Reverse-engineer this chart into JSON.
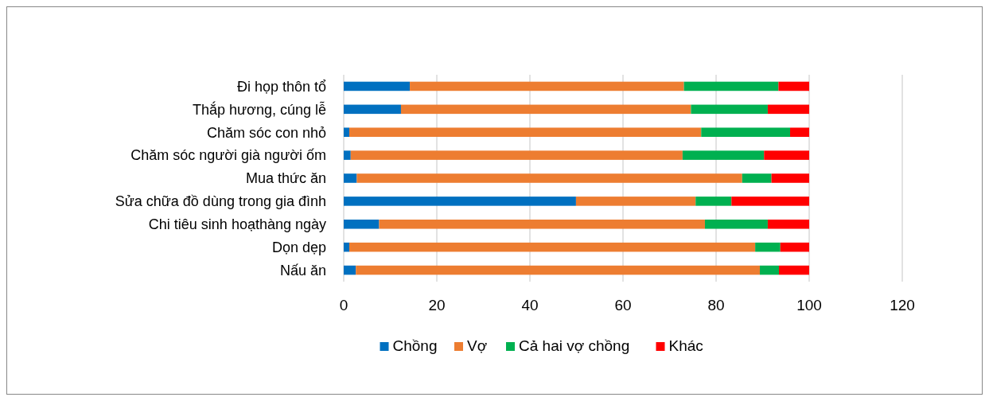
{
  "chart_data": {
    "type": "bar",
    "orientation": "horizontal",
    "stacked": true,
    "categories": [
      "Đi họp thôn tổ",
      "Thắp hương, cúng lễ",
      "Chăm sóc con nhỏ",
      "Chăm sóc người già người ốm",
      "Mua thức ăn",
      "Sửa chữa đồ dùng trong gia đình",
      "Chi tiêu sinh hoạthàng ngày",
      "Dọn dẹp",
      "Nấu ăn"
    ],
    "series": [
      {
        "name": "Chồng",
        "color": "#0070c0",
        "values": [
          14.2,
          12.3,
          1.2,
          1.5,
          2.8,
          49.9,
          7.6,
          1.2,
          2.6
        ]
      },
      {
        "name": "Vợ",
        "color": "#ed7d31",
        "values": [
          58.9,
          62.3,
          75.6,
          71.3,
          82.8,
          25.7,
          70.0,
          87.2,
          86.8
        ]
      },
      {
        "name": "Cả hai vợ chồng",
        "color": "#00b050",
        "values": [
          20.3,
          16.5,
          19.1,
          17.5,
          6.3,
          7.7,
          13.5,
          5.4,
          4.1
        ]
      },
      {
        "name": "Khác",
        "color": "#ff0000",
        "values": [
          6.6,
          8.9,
          4.1,
          9.7,
          8.1,
          16.7,
          8.9,
          6.2,
          6.5
        ]
      }
    ],
    "xlim": [
      0,
      120
    ],
    "xticks": [
      0,
      20,
      40,
      60,
      80,
      100,
      120
    ],
    "grid": "x",
    "legend": "bottom"
  }
}
